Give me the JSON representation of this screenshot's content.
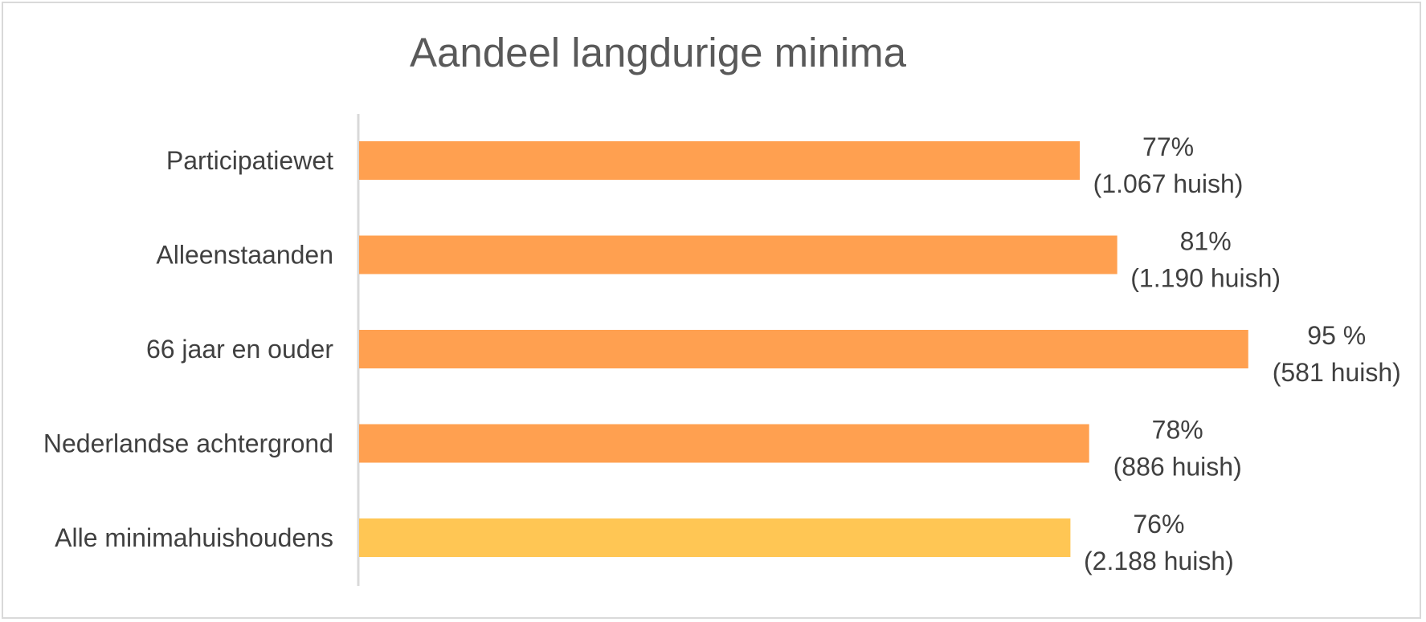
{
  "chart_data": {
    "type": "bar",
    "orientation": "horizontal",
    "title": "Aandeel langdurige minima",
    "xlabel": "",
    "ylabel": "",
    "xlim": [
      0,
      100
    ],
    "grid": false,
    "legend": "none",
    "categories": [
      "Participatiewet",
      "Alleenstaanden",
      "66 jaar en ouder",
      "Nederlandse achtergrond",
      "Alle minimahuishoudens"
    ],
    "values": [
      77,
      81,
      95,
      78,
      76
    ],
    "data_labels": [
      [
        "77%",
        "(1.067 huish)"
      ],
      [
        "81%",
        "(1.190 huish)"
      ],
      [
        "95 %",
        "(581 huish)"
      ],
      [
        "78%",
        "(886 huish)"
      ],
      [
        "76%",
        "(2.188 huish)"
      ]
    ],
    "colors": [
      "#ffa050",
      "#ffa050",
      "#ffa050",
      "#ffa050",
      "#ffc654"
    ]
  }
}
